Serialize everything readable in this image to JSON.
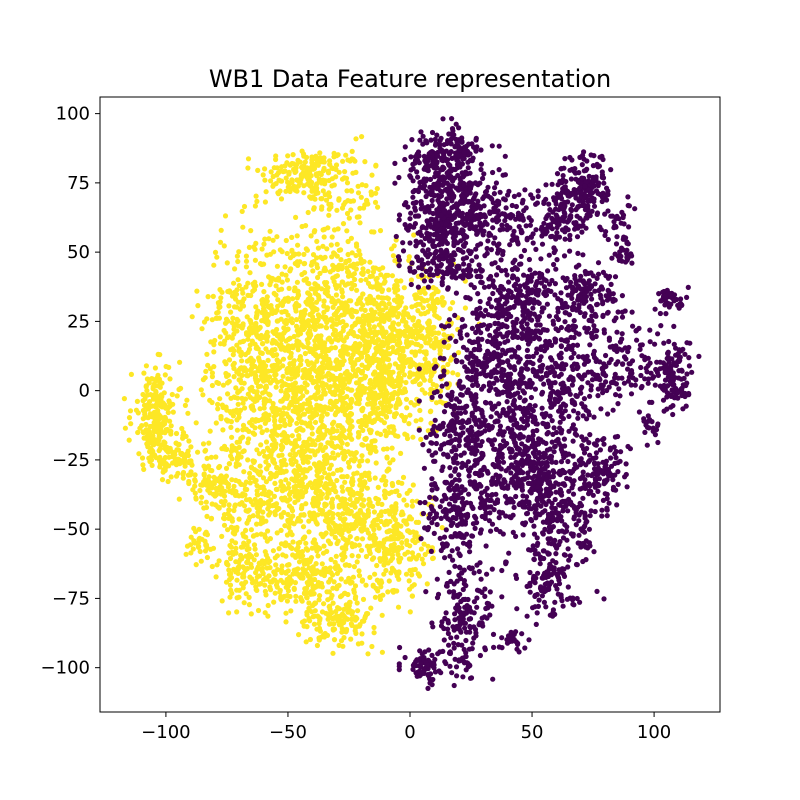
{
  "chart_data": {
    "type": "scatter",
    "title": "WB1 Data Feature representation",
    "xlabel": "",
    "ylabel": "",
    "xlim": [
      -127,
      127
    ],
    "ylim": [
      -116,
      106
    ],
    "grid": false,
    "legend": "none",
    "x_ticks": [
      -100,
      -50,
      0,
      50,
      100
    ],
    "x_tick_labels": [
      "−100",
      "−50",
      "0",
      "50",
      "100"
    ],
    "y_ticks": [
      100,
      75,
      50,
      25,
      0,
      -25,
      -50,
      -75,
      -100
    ],
    "y_tick_labels": [
      "100",
      "75",
      "50",
      "25",
      "0",
      "−25",
      "−50",
      "−75",
      "−100"
    ],
    "colors": {
      "class_0": "#440154",
      "class_1": "#fde725"
    },
    "clusters": [
      {
        "class": "class_1",
        "cx": -43,
        "cy": 78,
        "sx": 9,
        "sy": 5,
        "n": 160
      },
      {
        "class": "class_1",
        "cx": -27,
        "cy": 70,
        "sx": 8,
        "sy": 9,
        "n": 90
      },
      {
        "class": "class_1",
        "cx": -38,
        "cy": 30,
        "sx": 12,
        "sy": 14,
        "n": 420
      },
      {
        "class": "class_1",
        "cx": -15,
        "cy": 25,
        "sx": 10,
        "sy": 12,
        "n": 300
      },
      {
        "class": "class_1",
        "cx": 5,
        "cy": 18,
        "sx": 9,
        "sy": 14,
        "n": 300
      },
      {
        "class": "class_1",
        "cx": -65,
        "cy": 25,
        "sx": 10,
        "sy": 18,
        "n": 280
      },
      {
        "class": "class_1",
        "cx": -55,
        "cy": 0,
        "sx": 14,
        "sy": 14,
        "n": 420
      },
      {
        "class": "class_1",
        "cx": -30,
        "cy": -5,
        "sx": 12,
        "sy": 14,
        "n": 380
      },
      {
        "class": "class_1",
        "cx": -10,
        "cy": 0,
        "sx": 8,
        "sy": 10,
        "n": 200
      },
      {
        "class": "class_1",
        "cx": -104,
        "cy": -10,
        "sx": 5,
        "sy": 9,
        "n": 220
      },
      {
        "class": "class_1",
        "cx": -95,
        "cy": -25,
        "sx": 5,
        "sy": 3,
        "n": 70
      },
      {
        "class": "class_1",
        "cx": -82,
        "cy": -35,
        "sx": 5,
        "sy": 4,
        "n": 70
      },
      {
        "class": "class_1",
        "cx": -70,
        "cy": -40,
        "sx": 8,
        "sy": 10,
        "n": 130
      },
      {
        "class": "class_1",
        "cx": -50,
        "cy": -35,
        "sx": 10,
        "sy": 12,
        "n": 300
      },
      {
        "class": "class_1",
        "cx": -25,
        "cy": -45,
        "sx": 10,
        "sy": 14,
        "n": 380
      },
      {
        "class": "class_1",
        "cx": -5,
        "cy": -55,
        "sx": 7,
        "sy": 10,
        "n": 200
      },
      {
        "class": "class_1",
        "cx": -68,
        "cy": -65,
        "sx": 5,
        "sy": 6,
        "n": 110
      },
      {
        "class": "class_1",
        "cx": -45,
        "cy": -68,
        "sx": 10,
        "sy": 6,
        "n": 180
      },
      {
        "class": "class_1",
        "cx": -30,
        "cy": -82,
        "sx": 8,
        "sy": 5,
        "n": 140
      },
      {
        "class": "class_1",
        "cx": -85,
        "cy": -55,
        "sx": 3,
        "sy": 3,
        "n": 30
      },
      {
        "class": "class_0",
        "cx": 12,
        "cy": 80,
        "sx": 7,
        "sy": 7,
        "n": 250
      },
      {
        "class": "class_0",
        "cx": 22,
        "cy": 87,
        "sx": 3,
        "sy": 3,
        "n": 40
      },
      {
        "class": "class_0",
        "cx": 23,
        "cy": 65,
        "sx": 8,
        "sy": 9,
        "n": 250
      },
      {
        "class": "class_0",
        "cx": 10,
        "cy": 57,
        "sx": 6,
        "sy": 6,
        "n": 120
      },
      {
        "class": "class_0",
        "cx": 15,
        "cy": 45,
        "sx": 8,
        "sy": 4,
        "n": 120
      },
      {
        "class": "class_0",
        "cx": 45,
        "cy": 35,
        "sx": 10,
        "sy": 6,
        "n": 200
      },
      {
        "class": "class_0",
        "cx": 72,
        "cy": 35,
        "sx": 7,
        "sy": 5,
        "n": 120
      },
      {
        "class": "class_0",
        "cx": 43,
        "cy": 60,
        "sx": 7,
        "sy": 7,
        "n": 90
      },
      {
        "class": "class_0",
        "cx": 62,
        "cy": 63,
        "sx": 6,
        "sy": 8,
        "n": 120
      },
      {
        "class": "class_0",
        "cx": 72,
        "cy": 72,
        "sx": 5,
        "sy": 7,
        "n": 150
      },
      {
        "class": "class_0",
        "cx": 85,
        "cy": 58,
        "sx": 3,
        "sy": 5,
        "n": 40
      },
      {
        "class": "class_0",
        "cx": 88,
        "cy": 48,
        "sx": 2,
        "sy": 2,
        "n": 15
      },
      {
        "class": "class_0",
        "cx": 90,
        "cy": 10,
        "sx": 7,
        "sy": 8,
        "n": 90
      },
      {
        "class": "class_0",
        "cx": 107,
        "cy": 33,
        "sx": 3,
        "sy": 2,
        "n": 40
      },
      {
        "class": "class_0",
        "cx": 108,
        "cy": 5,
        "sx": 4,
        "sy": 7,
        "n": 120
      },
      {
        "class": "class_0",
        "cx": 99,
        "cy": -12,
        "sx": 2,
        "sy": 3,
        "n": 20
      },
      {
        "class": "class_0",
        "cx": 36,
        "cy": 10,
        "sx": 10,
        "sy": 12,
        "n": 380
      },
      {
        "class": "class_0",
        "cx": 65,
        "cy": 5,
        "sx": 10,
        "sy": 12,
        "n": 280
      },
      {
        "class": "class_0",
        "cx": 22,
        "cy": -15,
        "sx": 7,
        "sy": 12,
        "n": 250
      },
      {
        "class": "class_0",
        "cx": 45,
        "cy": -25,
        "sx": 8,
        "sy": 12,
        "n": 280
      },
      {
        "class": "class_0",
        "cx": 60,
        "cy": -40,
        "sx": 8,
        "sy": 14,
        "n": 320
      },
      {
        "class": "class_0",
        "cx": 78,
        "cy": -30,
        "sx": 6,
        "sy": 7,
        "n": 120
      },
      {
        "class": "class_0",
        "cx": 20,
        "cy": -45,
        "sx": 8,
        "sy": 8,
        "n": 180
      },
      {
        "class": "class_0",
        "cx": 55,
        "cy": -70,
        "sx": 6,
        "sy": 6,
        "n": 90
      },
      {
        "class": "class_0",
        "cx": 72,
        "cy": -55,
        "sx": 2,
        "sy": 2,
        "n": 20
      },
      {
        "class": "class_0",
        "cx": 22,
        "cy": -82,
        "sx": 6,
        "sy": 10,
        "n": 160
      },
      {
        "class": "class_0",
        "cx": 6,
        "cy": -100,
        "sx": 4,
        "sy": 3,
        "n": 70
      },
      {
        "class": "class_0",
        "cx": 42,
        "cy": -90,
        "sx": 3,
        "sy": 2,
        "n": 25
      },
      {
        "class": "class_0",
        "cx": 23,
        "cy": -100,
        "sx": 2,
        "sy": 2,
        "n": 15
      }
    ]
  }
}
